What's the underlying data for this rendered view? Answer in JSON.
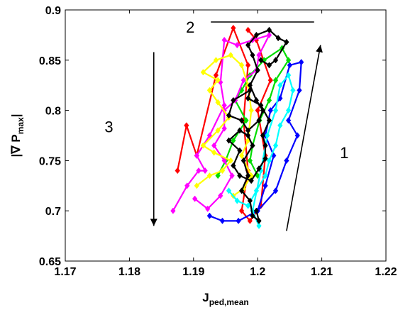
{
  "chart_data": {
    "type": "line",
    "title": "",
    "xlabel": {
      "main": "J",
      "sub": "ped,mean"
    },
    "ylabel": {
      "main": "|∇ P",
      "sub": "max",
      "close": "|"
    },
    "xlim": [
      1.17,
      1.22
    ],
    "ylim": [
      0.65,
      0.9
    ],
    "xticks": [
      1.17,
      1.18,
      1.19,
      1.2,
      1.21,
      1.22
    ],
    "yticks": [
      0.65,
      0.7,
      0.75,
      0.8,
      0.85,
      0.9
    ],
    "xtick_labels": [
      "1.17",
      "1.18",
      "1.19",
      "1.2",
      "1.21",
      "1.22"
    ],
    "ytick_labels": [
      "0.65",
      "0.7",
      "0.75",
      "0.8",
      "0.85",
      "0.9"
    ],
    "grid": false,
    "marker": "diamond",
    "series": [
      {
        "color": "#ff0000",
        "points": [
          [
            1.1875,
            0.74
          ],
          [
            1.1889,
            0.785
          ],
          [
            1.1905,
            0.755
          ],
          [
            1.1935,
            0.835
          ],
          [
            1.1962,
            0.882
          ],
          [
            1.1985,
            0.845
          ],
          [
            1.1978,
            0.79
          ],
          [
            1.1985,
            0.74
          ],
          [
            1.1975,
            0.7
          ],
          [
            1.1988,
            0.69
          ],
          [
            1.2005,
            0.705
          ],
          [
            1.2012,
            0.755
          ],
          [
            1.2,
            0.8
          ],
          [
            1.202,
            0.83
          ],
          [
            1.1998,
            0.87
          ],
          [
            1.1985,
            0.88
          ]
        ]
      },
      {
        "color": "#0000ff",
        "points": [
          [
            1.1925,
            0.695
          ],
          [
            1.1945,
            0.69
          ],
          [
            1.197,
            0.69
          ],
          [
            1.2,
            0.7
          ],
          [
            1.2028,
            0.72
          ],
          [
            1.2045,
            0.75
          ],
          [
            1.2062,
            0.775
          ],
          [
            1.2048,
            0.79
          ],
          [
            1.2065,
            0.82
          ],
          [
            1.2068,
            0.848
          ],
          [
            1.205,
            0.845
          ],
          [
            1.2035,
            0.812
          ],
          [
            1.202,
            0.8
          ],
          [
            1.2012,
            0.775
          ],
          [
            1.2025,
            0.755
          ],
          [
            1.2012,
            0.725
          ],
          [
            1.2,
            0.7
          ]
        ]
      },
      {
        "color": "#00dd00",
        "points": [
          [
            1.1938,
            0.735
          ],
          [
            1.195,
            0.75
          ],
          [
            1.1962,
            0.77
          ],
          [
            1.1982,
            0.79
          ],
          [
            1.1965,
            0.81
          ],
          [
            1.1975,
            0.82
          ],
          [
            1.1988,
            0.835
          ],
          [
            1.201,
            0.85
          ],
          [
            1.2038,
            0.862
          ],
          [
            1.2048,
            0.85
          ],
          [
            1.2028,
            0.83
          ],
          [
            1.2018,
            0.81
          ],
          [
            1.2003,
            0.79
          ],
          [
            1.1992,
            0.765
          ],
          [
            1.1988,
            0.75
          ],
          [
            1.2,
            0.735
          ]
        ]
      },
      {
        "color": "#ff00ff",
        "points": [
          [
            1.1868,
            0.7
          ],
          [
            1.189,
            0.725
          ],
          [
            1.1908,
            0.74
          ],
          [
            1.1918,
            0.74
          ],
          [
            1.1905,
            0.755
          ],
          [
            1.1925,
            0.775
          ],
          [
            1.1948,
            0.805
          ],
          [
            1.1942,
            0.828
          ],
          [
            1.1948,
            0.87
          ],
          [
            1.1968,
            0.865
          ],
          [
            1.1992,
            0.87
          ],
          [
            1.2018,
            0.875
          ],
          [
            1.2002,
            0.855
          ],
          [
            1.1998,
            0.84
          ],
          [
            1.1978,
            0.83
          ],
          [
            1.1965,
            0.81
          ],
          [
            1.1948,
            0.8
          ],
          [
            1.1948,
            0.782
          ],
          [
            1.1932,
            0.765
          ],
          [
            1.1948,
            0.75
          ],
          [
            1.196,
            0.735
          ],
          [
            1.1942,
            0.715
          ],
          [
            1.1922,
            0.702
          ],
          [
            1.1902,
            0.712
          ]
        ]
      },
      {
        "color": "#ffff00",
        "points": [
          [
            1.1905,
            0.725
          ],
          [
            1.1925,
            0.735
          ],
          [
            1.1945,
            0.74
          ],
          [
            1.1958,
            0.75
          ],
          [
            1.1932,
            0.758
          ],
          [
            1.1915,
            0.765
          ],
          [
            1.1938,
            0.78
          ],
          [
            1.1955,
            0.793
          ],
          [
            1.1938,
            0.808
          ],
          [
            1.1925,
            0.82
          ],
          [
            1.1938,
            0.83
          ],
          [
            1.1915,
            0.838
          ],
          [
            1.1935,
            0.85
          ],
          [
            1.1958,
            0.855
          ],
          [
            1.1975,
            0.845
          ],
          [
            1.1985,
            0.825
          ],
          [
            1.199,
            0.8
          ],
          [
            1.1985,
            0.77
          ],
          [
            1.1975,
            0.755
          ],
          [
            1.199,
            0.735
          ],
          [
            1.1978,
            0.722
          ],
          [
            1.1962,
            0.715
          ]
        ]
      },
      {
        "color": "#00ffff",
        "points": [
          [
            1.1955,
            0.72
          ],
          [
            1.1968,
            0.71
          ],
          [
            1.1985,
            0.705
          ],
          [
            1.1998,
            0.72
          ],
          [
            1.2012,
            0.735
          ],
          [
            1.2018,
            0.75
          ],
          [
            1.2028,
            0.765
          ],
          [
            1.2035,
            0.785
          ],
          [
            1.2048,
            0.8
          ],
          [
            1.2055,
            0.82
          ],
          [
            1.2048,
            0.835
          ],
          [
            1.2035,
            0.825
          ],
          [
            1.2028,
            0.8
          ],
          [
            1.2015,
            0.775
          ],
          [
            1.2005,
            0.74
          ],
          [
            1.1992,
            0.7
          ],
          [
            1.2002,
            0.685
          ]
        ]
      },
      {
        "color": "#000000",
        "points": [
          [
            1.1998,
            0.7
          ],
          [
            1.2002,
            0.69
          ],
          [
            1.1992,
            0.695
          ],
          [
            1.1988,
            0.71
          ],
          [
            1.1975,
            0.72
          ],
          [
            1.1985,
            0.735
          ],
          [
            1.1978,
            0.75
          ],
          [
            1.1992,
            0.765
          ],
          [
            1.1985,
            0.775
          ],
          [
            1.1972,
            0.78
          ],
          [
            1.1955,
            0.77
          ],
          [
            1.1972,
            0.76
          ],
          [
            1.1962,
            0.745
          ],
          [
            1.1972,
            0.735
          ],
          [
            1.199,
            0.73
          ],
          [
            1.2002,
            0.742
          ],
          [
            1.2012,
            0.752
          ],
          [
            1.2012,
            0.765
          ],
          [
            1.2008,
            0.775
          ],
          [
            1.2018,
            0.79
          ],
          [
            1.2005,
            0.805
          ],
          [
            1.1985,
            0.812
          ],
          [
            1.1988,
            0.82
          ],
          [
            1.1962,
            0.81
          ],
          [
            1.1955,
            0.795
          ],
          [
            1.1975,
            0.79
          ],
          [
            1.1985,
            0.78
          ],
          [
            1.2002,
            0.79
          ],
          [
            1.2008,
            0.8
          ],
          [
            1.1998,
            0.81
          ],
          [
            1.1988,
            0.825
          ],
          [
            1.2,
            0.84
          ],
          [
            1.1992,
            0.855
          ],
          [
            1.1985,
            0.865
          ],
          [
            1.1998,
            0.875
          ],
          [
            1.2018,
            0.88
          ],
          [
            1.2032,
            0.872
          ],
          [
            1.2045,
            0.868
          ],
          [
            1.2028,
            0.85
          ],
          [
            1.2018,
            0.845
          ],
          [
            1.2005,
            0.85
          ]
        ]
      }
    ],
    "annotations": [
      {
        "id": "1",
        "label": "1",
        "arrow": {
          "from": [
            1.2045,
            0.68
          ],
          "to": [
            1.2098,
            0.865
          ]
        },
        "label_at": [
          1.2135,
          0.758
        ]
      },
      {
        "id": "2",
        "label": "2",
        "line": {
          "from": [
            1.1927,
            0.888
          ],
          "to": [
            1.2088,
            0.888
          ]
        },
        "label_at": [
          1.1895,
          0.883
        ]
      },
      {
        "id": "3",
        "label": "3",
        "arrow": {
          "from": [
            1.1838,
            0.858
          ],
          "to": [
            1.1838,
            0.685
          ]
        },
        "label_at": [
          1.1768,
          0.784
        ]
      }
    ]
  }
}
